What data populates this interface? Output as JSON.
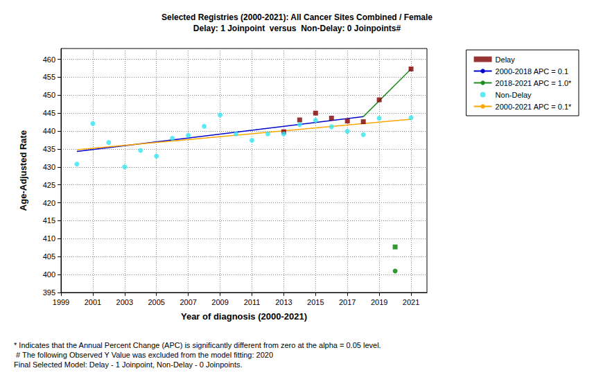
{
  "chart_data": {
    "type": "line",
    "title": "Selected Registries (2000-2021): All Cancer Sites Combined / Female",
    "subtitle": "Delay: 1 Joinpoint  versus  Non-Delay: 0 Joinpoints#",
    "x_label": "Year of diagnosis (2000-2021)",
    "y_label": "Age-Adjusted Rate",
    "xlim": [
      1999,
      2022
    ],
    "xticks": [
      1999,
      2001,
      2003,
      2005,
      2007,
      2009,
      2011,
      2013,
      2015,
      2017,
      2019,
      2021
    ],
    "ylim": [
      395,
      463
    ],
    "yticks": [
      395,
      400,
      405,
      410,
      415,
      420,
      425,
      430,
      435,
      440,
      445,
      450,
      455,
      460
    ],
    "grid": true,
    "legend": "top-right",
    "series": [
      {
        "name": "Delay",
        "type": "scatter",
        "marker": "square",
        "color": "#800000",
        "x": [
          2013,
          2014,
          2015,
          2016,
          2017,
          2018,
          2019,
          2020,
          2021
        ],
        "values": [
          439.8,
          443.1,
          445.0,
          443.6,
          442.8,
          442.6,
          448.7,
          407.7,
          457.3
        ],
        "colors": [
          "#800000",
          "#800000",
          "#800000",
          "#800000",
          "#800000",
          "#800000",
          "#800000",
          "#008000",
          "#800000"
        ]
      },
      {
        "name": "2000-2018 APC = 0.1",
        "type": "line",
        "line_style": "solid",
        "color": "#0000cc",
        "x": [
          2000,
          2018
        ],
        "values": [
          434.3,
          444.0
        ]
      },
      {
        "name": "2018-2021 APC = 1.0*",
        "type": "line",
        "line_style": "solid",
        "color": "#1e8c1e",
        "x": [
          2018,
          2021
        ],
        "values": [
          444.0,
          457.3
        ]
      },
      {
        "name": "Non-Delay",
        "type": "scatter",
        "marker": "circle",
        "color": "#33e6f0",
        "x": [
          2000,
          2001,
          2002,
          2003,
          2004,
          2005,
          2006,
          2007,
          2008,
          2009,
          2010,
          2011,
          2012,
          2013,
          2014,
          2015,
          2016,
          2017,
          2018,
          2019,
          2020,
          2021
        ],
        "values": [
          430.8,
          442.1,
          436.8,
          430.0,
          434.6,
          433.0,
          438.0,
          438.8,
          441.3,
          444.5,
          439.2,
          437.4,
          439.2,
          439.2,
          441.8,
          443.0,
          441.2,
          439.9,
          439.0,
          443.6,
          401.0,
          443.7
        ],
        "colors": [
          "#33e6f0",
          "#33e6f0",
          "#33e6f0",
          "#33e6f0",
          "#33e6f0",
          "#33e6f0",
          "#33e6f0",
          "#33e6f0",
          "#33e6f0",
          "#33e6f0",
          "#33e6f0",
          "#33e6f0",
          "#33e6f0",
          "#33e6f0",
          "#33e6f0",
          "#33e6f0",
          "#33e6f0",
          "#33e6f0",
          "#33e6f0",
          "#33e6f0",
          "#008000",
          "#33e6f0"
        ]
      },
      {
        "name": "2000-2021 APC = 0.1*",
        "type": "line",
        "line_style": "solid",
        "color": "#ffa500",
        "x": [
          2000,
          2021
        ],
        "values": [
          434.8,
          443.3
        ]
      }
    ],
    "annotations": [
      "* Indicates that the Annual Percent Change (APC) is significantly different from zero at the alpha = 0.05 level.",
      " # The following Observed Y Value was excluded from the model fitting: 2020",
      "Final Selected Model: Delay - 1 Joinpoint, Non-Delay - 0 Joinpoints."
    ]
  }
}
